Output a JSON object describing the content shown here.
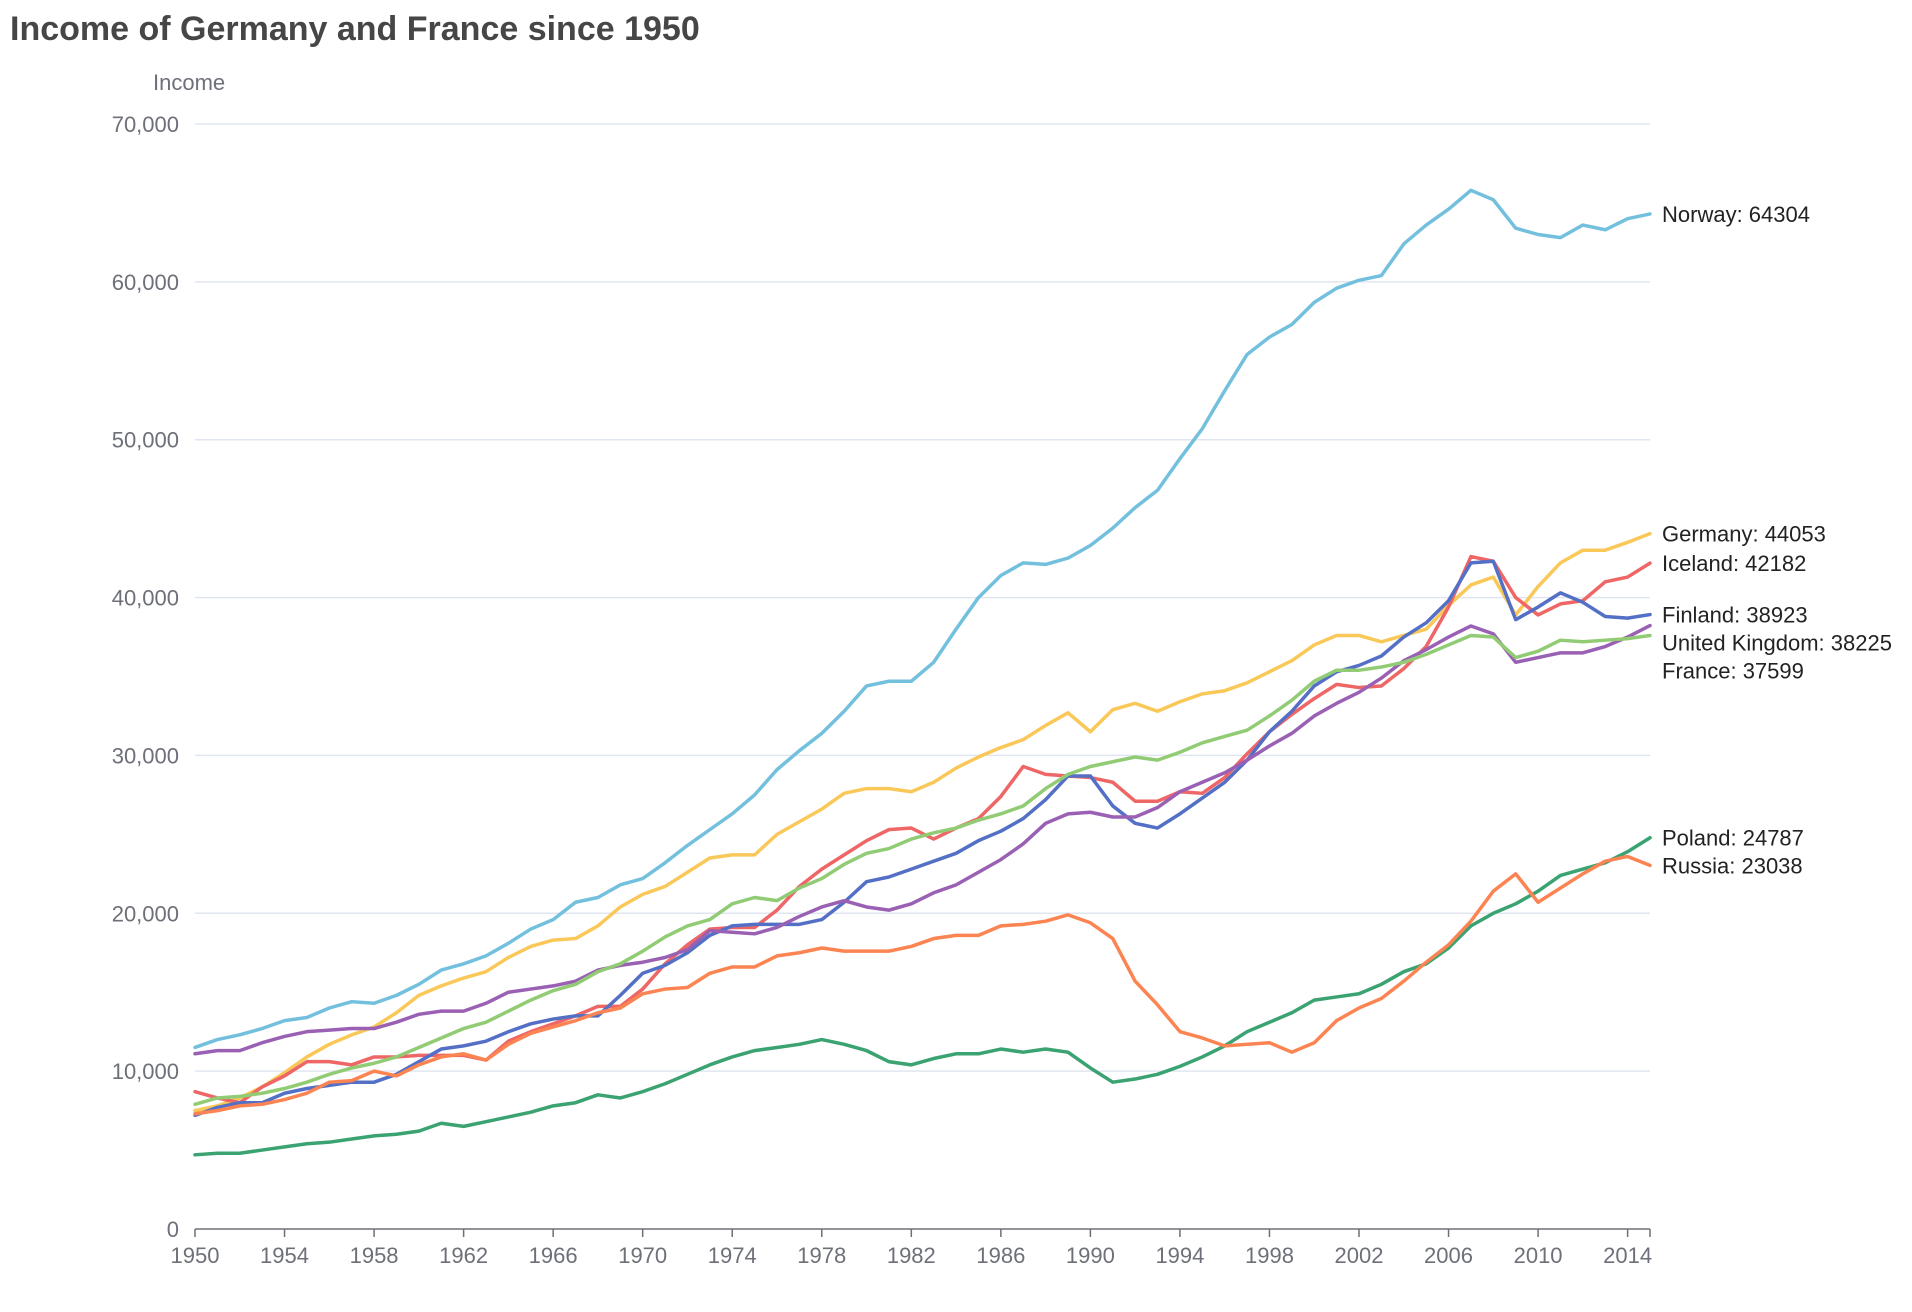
{
  "chart_data": {
    "type": "line",
    "title": "Income of Germany and France since 1950",
    "ylabel": "Income",
    "xlabel": "",
    "xlim": [
      1950,
      2015
    ],
    "ylim": [
      0,
      70000
    ],
    "x_ticks": [
      "1950",
      "1954",
      "1958",
      "1962",
      "1966",
      "1970",
      "1974",
      "1978",
      "1982",
      "1986",
      "1990",
      "1994",
      "1998",
      "2002",
      "2006",
      "2010",
      "2014"
    ],
    "y_ticks": [
      "0",
      "10,000",
      "20,000",
      "30,000",
      "40,000",
      "50,000",
      "60,000",
      "70,000"
    ],
    "grid": true,
    "legend": "line-end labels",
    "x_start": 1950,
    "series": [
      {
        "name": "Norway",
        "color": "#73c0de",
        "end_label": "Norway: 64304",
        "values": [
          11500,
          12000,
          12300,
          12700,
          13200,
          13400,
          14000,
          14400,
          14300,
          14800,
          15500,
          16400,
          16800,
          17300,
          18100,
          19000,
          19600,
          20700,
          21000,
          21800,
          22200,
          23200,
          24300,
          25300,
          26300,
          27500,
          29100,
          30300,
          31400,
          32800,
          34400,
          34700,
          34700,
          35900,
          38000,
          40000,
          41400,
          42200,
          42100,
          42500,
          43300,
          44400,
          45700,
          46800,
          48800,
          50700,
          53100,
          55400,
          56500,
          57300,
          58700,
          59600,
          60100,
          60400,
          62400,
          63600,
          64600,
          65800,
          65200,
          63400,
          63000,
          62800,
          63600,
          63300,
          64000,
          64304
        ]
      },
      {
        "name": "Germany",
        "color": "#fac858",
        "end_label": "Germany: 44053",
        "values": [
          7500,
          7800,
          8300,
          9000,
          9900,
          10900,
          11700,
          12300,
          12800,
          13700,
          14800,
          15400,
          15900,
          16300,
          17200,
          17900,
          18300,
          18400,
          19200,
          20400,
          21200,
          21700,
          22600,
          23500,
          23700,
          23700,
          25000,
          25800,
          26600,
          27600,
          27900,
          27900,
          27700,
          28300,
          29200,
          29900,
          30500,
          31000,
          31900,
          32700,
          31500,
          32900,
          33300,
          32800,
          33400,
          33900,
          34100,
          34600,
          35300,
          36000,
          37000,
          37600,
          37600,
          37200,
          37600,
          38000,
          39500,
          40800,
          41300,
          38900,
          40700,
          42200,
          43000,
          43000,
          43500,
          44053
        ]
      },
      {
        "name": "Iceland",
        "color": "#ee6666",
        "end_label": "Iceland: 42182",
        "values": [
          8700,
          8300,
          8000,
          9000,
          9700,
          10600,
          10600,
          10400,
          10900,
          10900,
          11000,
          11000,
          11000,
          10700,
          11900,
          12500,
          13000,
          13500,
          14100,
          14100,
          15200,
          16800,
          18000,
          19000,
          19100,
          19100,
          20200,
          21700,
          22800,
          23700,
          24600,
          25300,
          25400,
          24700,
          25400,
          26000,
          27400,
          29300,
          28800,
          28700,
          28600,
          28300,
          27100,
          27100,
          27700,
          27600,
          28600,
          30100,
          31500,
          32600,
          33600,
          34500,
          34300,
          34400,
          35500,
          36900,
          39400,
          42600,
          42300,
          40000,
          38900,
          39600,
          39800,
          41000,
          41300,
          42182
        ]
      },
      {
        "name": "Finland",
        "color": "#5470c6",
        "end_label": "Finland: 38923",
        "values": [
          7200,
          7700,
          8000,
          8000,
          8600,
          8900,
          9100,
          9300,
          9300,
          9800,
          10600,
          11400,
          11600,
          11900,
          12500,
          13000,
          13300,
          13500,
          13500,
          14800,
          16200,
          16700,
          17500,
          18600,
          19200,
          19300,
          19300,
          19300,
          19600,
          20700,
          22000,
          22300,
          22800,
          23300,
          23800,
          24600,
          25200,
          26000,
          27200,
          28700,
          28700,
          26800,
          25700,
          25400,
          26300,
          27300,
          28300,
          29700,
          31500,
          32800,
          34400,
          35300,
          35700,
          36300,
          37500,
          38400,
          39800,
          42200,
          42300,
          38600,
          39400,
          40300,
          39700,
          38800,
          38700,
          38923
        ]
      },
      {
        "name": "United Kingdom",
        "color": "#9a60b4",
        "end_label": "United Kingdom: 38225",
        "values": [
          11100,
          11300,
          11300,
          11800,
          12200,
          12500,
          12600,
          12700,
          12700,
          13100,
          13600,
          13800,
          13800,
          14300,
          15000,
          15200,
          15400,
          15700,
          16400,
          16700,
          16900,
          17200,
          17700,
          18900,
          18800,
          18700,
          19100,
          19800,
          20400,
          20800,
          20400,
          20200,
          20600,
          21300,
          21800,
          22600,
          23400,
          24400,
          25700,
          26300,
          26400,
          26100,
          26100,
          26700,
          27700,
          28300,
          28900,
          29700,
          30600,
          31400,
          32500,
          33300,
          34000,
          34900,
          36000,
          36700,
          37500,
          38200,
          37700,
          35900,
          36200,
          36500,
          36500,
          36900,
          37500,
          38225
        ]
      },
      {
        "name": "France",
        "color": "#91cc75",
        "end_label": "France: 37599",
        "values": [
          7900,
          8300,
          8400,
          8600,
          8900,
          9300,
          9800,
          10200,
          10500,
          10900,
          11500,
          12100,
          12700,
          13100,
          13800,
          14500,
          15100,
          15500,
          16300,
          16800,
          17600,
          18500,
          19200,
          19600,
          20600,
          21000,
          20800,
          21600,
          22200,
          23100,
          23800,
          24100,
          24700,
          25100,
          25400,
          25900,
          26300,
          26800,
          27900,
          28800,
          29300,
          29600,
          29900,
          29700,
          30200,
          30800,
          31200,
          31600,
          32500,
          33500,
          34700,
          35400,
          35400,
          35600,
          35900,
          36400,
          37000,
          37600,
          37500,
          36200,
          36600,
          37300,
          37200,
          37300,
          37400,
          37599
        ]
      },
      {
        "name": "Poland",
        "color": "#3ba272",
        "end_label": "Poland: 24787",
        "values": [
          4700,
          4800,
          4800,
          5000,
          5200,
          5400,
          5500,
          5700,
          5900,
          6000,
          6200,
          6700,
          6500,
          6800,
          7100,
          7400,
          7800,
          8000,
          8500,
          8300,
          8700,
          9200,
          9800,
          10400,
          10900,
          11300,
          11500,
          11700,
          12000,
          11700,
          11300,
          10600,
          10400,
          10800,
          11100,
          11100,
          11400,
          11200,
          11400,
          11200,
          10200,
          9300,
          9500,
          9800,
          10300,
          10900,
          11600,
          12500,
          13100,
          13700,
          14500,
          14700,
          14900,
          15500,
          16300,
          16800,
          17800,
          19200,
          20000,
          20600,
          21400,
          22400,
          22800,
          23200,
          23900,
          24787
        ]
      },
      {
        "name": "Russia",
        "color": "#fc8452",
        "end_label": "Russia: 23038",
        "values": [
          7300,
          7500,
          7800,
          7900,
          8200,
          8600,
          9300,
          9400,
          10000,
          9700,
          10400,
          10900,
          11100,
          10700,
          11700,
          12400,
          12800,
          13200,
          13700,
          14000,
          14900,
          15200,
          15300,
          16200,
          16600,
          16600,
          17300,
          17500,
          17800,
          17600,
          17600,
          17600,
          17900,
          18400,
          18600,
          18600,
          19200,
          19300,
          19500,
          19900,
          19400,
          18400,
          15700,
          14200,
          12500,
          12100,
          11600,
          11700,
          11800,
          11200,
          11800,
          13200,
          14000,
          14600,
          15700,
          16900,
          18000,
          19500,
          21400,
          22500,
          20700,
          21600,
          22500,
          23300,
          23600,
          23038
        ]
      }
    ]
  }
}
